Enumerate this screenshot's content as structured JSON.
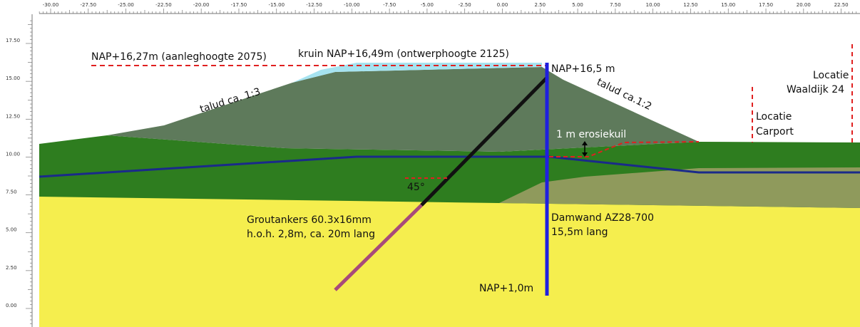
{
  "x_axis": {
    "labels": [
      "-30.00",
      "-27.50",
      "-25.00",
      "-22.50",
      "-20.00",
      "-17.50",
      "-15.00",
      "-12.50",
      "-10.00",
      "-7.50",
      "-5.00",
      "-2.50",
      "0.00",
      "2.50",
      "5.00",
      "7.50",
      "10.00",
      "12.50",
      "15.00",
      "17.50",
      "20.00",
      "22.50"
    ],
    "values": [
      -30,
      -27.5,
      -25,
      -22.5,
      -20,
      -17.5,
      -15,
      -12.5,
      -10,
      -7.5,
      -5,
      -2.5,
      0,
      2.5,
      5,
      7.5,
      10,
      12.5,
      15,
      17.5,
      20,
      22.5
    ]
  },
  "y_axis": {
    "labels": [
      "17.50",
      "15.00",
      "12.50",
      "10.00",
      "7.50",
      "5.00",
      "2.50",
      "0.00"
    ],
    "values": [
      17.5,
      15,
      12.5,
      10,
      7.5,
      5,
      2.5,
      0
    ]
  },
  "annotations": {
    "nap_aanleg": "NAP+16,27m (aanleghoogte 2075)",
    "kruin": "kruin NAP+16,49m (ontwerphoogte 2125)",
    "nap_top": "NAP+16,5 m",
    "talud_left": "talud ca. 1:3",
    "talud_right": "talud ca.1:2",
    "locatie_waaldijk_1": "Locatie",
    "locatie_waaldijk_2": "Waaldijk 24",
    "locatie_carport_1": "Locatie",
    "locatie_carport_2": "Carport",
    "erosiekuil": "1 m erosiekuil",
    "angle": "45°",
    "groutankers_1": "Groutankers 60.3x16mm",
    "groutankers_2": "h.o.h. 2,8m, ca. 20m lang",
    "damwand_1": "Damwand AZ28-700",
    "damwand_2": "15,5m lang",
    "nap_bottom": "NAP+1,0m"
  },
  "colors": {
    "sand": "#f5ee4e",
    "green": "#2e7d1f",
    "dike": "#5e7a5b",
    "light_blue": "#a6e3f0",
    "olive": "#8f9a5c",
    "sheet_pile": "#1f1fe0",
    "phreatic": "#1a2a8a",
    "anchor_free": "#111111",
    "anchor_grout": "#a84a7a",
    "dashed": "#e02020"
  }
}
